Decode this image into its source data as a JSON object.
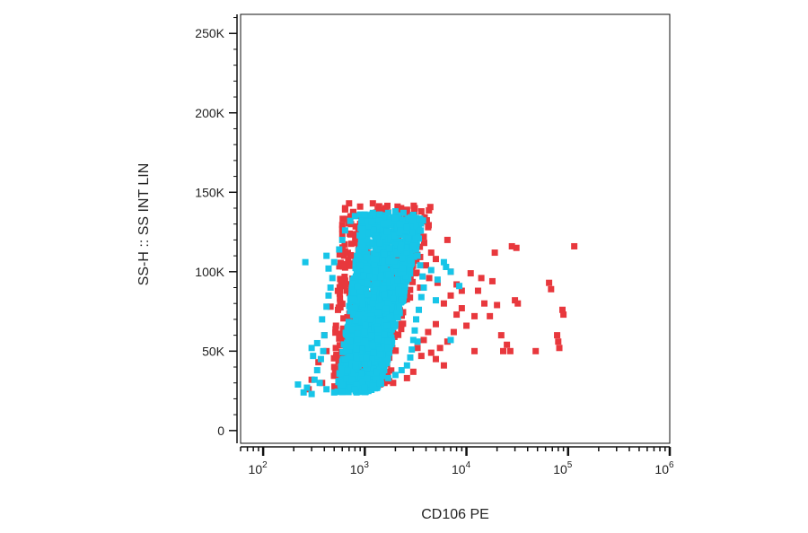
{
  "chart_data": {
    "type": "scatter",
    "title": "",
    "xlabel": "CD106 PE",
    "ylabel": "SS-H :: SS INT LIN",
    "x_scale": "log",
    "xlim": [
      60,
      1000000
    ],
    "ylim": [
      -8000,
      262000
    ],
    "x_ticks": [
      {
        "value": 100,
        "base": "10",
        "exp": "2"
      },
      {
        "value": 1000,
        "base": "10",
        "exp": "3"
      },
      {
        "value": 10000,
        "base": "10",
        "exp": "4"
      },
      {
        "value": 100000,
        "base": "10",
        "exp": "5"
      },
      {
        "value": 1000000,
        "base": "10",
        "exp": "6"
      }
    ],
    "y_ticks": [
      {
        "value": 0,
        "label": "0"
      },
      {
        "value": 50000,
        "label": "50K"
      },
      {
        "value": 100000,
        "label": "100K"
      },
      {
        "value": 150000,
        "label": "150K"
      },
      {
        "value": 200000,
        "label": "200K"
      },
      {
        "value": 250000,
        "label": "250K"
      }
    ],
    "grid": false,
    "legend": "none",
    "series": [
      {
        "color": "#e8383d",
        "points": [
          [
            400,
            60000
          ],
          [
            420,
            50000
          ],
          [
            460,
            78000
          ],
          [
            600,
            127000
          ],
          [
            640,
            140000
          ],
          [
            700,
            143000
          ],
          [
            900,
            141000
          ],
          [
            1200,
            143000
          ],
          [
            1600,
            140000
          ],
          [
            2100,
            141000
          ],
          [
            2600,
            139000
          ],
          [
            3100,
            140000
          ],
          [
            3600,
            138000
          ],
          [
            4200,
            128000
          ],
          [
            3800,
            122000
          ],
          [
            4500,
            112000
          ],
          [
            5000,
            108000
          ],
          [
            4300,
            96000
          ],
          [
            5200,
            93000
          ],
          [
            6500,
            120000
          ],
          [
            7000,
            100000
          ],
          [
            8000,
            92000
          ],
          [
            9000,
            88000
          ],
          [
            11000,
            99000
          ],
          [
            13000,
            88000
          ],
          [
            15000,
            80000
          ],
          [
            17000,
            72000
          ],
          [
            12000,
            72000
          ],
          [
            10000,
            66000
          ],
          [
            8000,
            73000
          ],
          [
            7500,
            62000
          ],
          [
            6500,
            56000
          ],
          [
            5500,
            52000
          ],
          [
            5000,
            45000
          ],
          [
            4500,
            49000
          ],
          [
            3800,
            57000
          ],
          [
            3600,
            47000
          ],
          [
            4200,
            62000
          ],
          [
            5000,
            67000
          ],
          [
            6000,
            80000
          ],
          [
            7000,
            85000
          ],
          [
            9000,
            77000
          ],
          [
            14000,
            96000
          ],
          [
            18000,
            94000
          ],
          [
            20000,
            79000
          ],
          [
            22000,
            60000
          ],
          [
            25000,
            54000
          ],
          [
            27000,
            50000
          ],
          [
            30000,
            82000
          ],
          [
            32000,
            80000
          ],
          [
            28000,
            116000
          ],
          [
            31000,
            115000
          ],
          [
            48000,
            50000
          ],
          [
            65000,
            93000
          ],
          [
            68000,
            89000
          ],
          [
            78000,
            60000
          ],
          [
            80000,
            56000
          ],
          [
            82000,
            52000
          ],
          [
            88000,
            76000
          ],
          [
            90000,
            73000
          ],
          [
            115000,
            116000
          ],
          [
            19000,
            112000
          ],
          [
            23000,
            50000
          ],
          [
            12000,
            50000
          ],
          [
            6000,
            41000
          ],
          [
            3500,
            90000
          ],
          [
            4000,
            104000
          ],
          [
            500,
            40000
          ],
          [
            350,
            43000
          ],
          [
            650,
            35000
          ],
          [
            900,
            30000
          ],
          [
            1300,
            27000
          ],
          [
            1900,
            30000
          ],
          [
            2600,
            33000
          ],
          [
            3000,
            37000
          ],
          [
            3300,
            52000
          ],
          [
            300,
            32000
          ],
          [
            280,
            26000
          ],
          [
            380,
            30000
          ],
          [
            750,
            110000
          ],
          [
            2200,
            135000
          ],
          [
            1500,
            138000
          ],
          [
            3000,
            120000
          ]
        ]
      },
      {
        "color": "#17c5e8",
        "points": [
          [
            260,
            106000
          ],
          [
            220,
            29000
          ],
          [
            250,
            24000
          ],
          [
            270,
            27000
          ],
          [
            300,
            23000
          ],
          [
            320,
            32000
          ],
          [
            340,
            38000
          ],
          [
            370,
            45000
          ],
          [
            390,
            50000
          ],
          [
            310,
            47000
          ],
          [
            300,
            52000
          ],
          [
            340,
            55000
          ],
          [
            400,
            60000
          ],
          [
            380,
            70000
          ],
          [
            420,
            78000
          ],
          [
            440,
            85000
          ],
          [
            460,
            90000
          ],
          [
            480,
            96000
          ],
          [
            440,
            102000
          ],
          [
            500,
            106000
          ],
          [
            420,
            110000
          ],
          [
            560,
            114000
          ],
          [
            600,
            120000
          ],
          [
            640,
            126000
          ],
          [
            720,
            132000
          ],
          [
            800,
            135000
          ],
          [
            900,
            136000
          ],
          [
            1000,
            136000
          ],
          [
            1200,
            137000
          ],
          [
            1400,
            136000
          ],
          [
            1700,
            137000
          ],
          [
            2000,
            138000
          ],
          [
            2200,
            130000
          ],
          [
            2500,
            126000
          ],
          [
            2700,
            121000
          ],
          [
            3000,
            116000
          ],
          [
            3300,
            110000
          ],
          [
            3500,
            104000
          ],
          [
            3700,
            97000
          ],
          [
            3800,
            90000
          ],
          [
            3600,
            84000
          ],
          [
            3400,
            76000
          ],
          [
            3200,
            70000
          ],
          [
            3100,
            63000
          ],
          [
            3000,
            57000
          ],
          [
            2900,
            51000
          ],
          [
            2800,
            46000
          ],
          [
            2600,
            41000
          ],
          [
            2300,
            38000
          ],
          [
            2000,
            35000
          ],
          [
            1700,
            33000
          ],
          [
            1400,
            30000
          ],
          [
            1200,
            28000
          ],
          [
            1000,
            27000
          ],
          [
            800,
            26000
          ],
          [
            600,
            25000
          ],
          [
            500,
            24000
          ],
          [
            420,
            26000
          ],
          [
            360,
            30000
          ],
          [
            2600,
            128000
          ],
          [
            6000,
            106000
          ],
          [
            7000,
            100000
          ],
          [
            8500,
            91000
          ],
          [
            5200,
            95000
          ],
          [
            4500,
            101000
          ],
          [
            5000,
            82000
          ],
          [
            7000,
            57000
          ],
          [
            3300,
            56000
          ],
          [
            2400,
            137000
          ],
          [
            6300,
            103000
          ]
        ]
      }
    ]
  }
}
